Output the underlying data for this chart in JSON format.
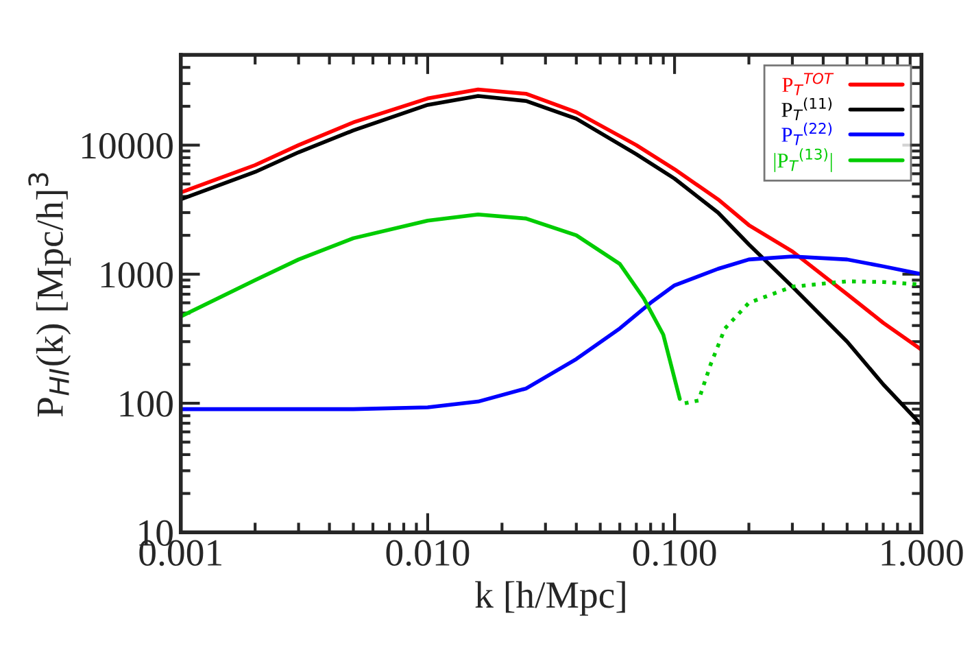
{
  "chart_data": {
    "type": "line",
    "xlabel": "k [h/Mpc]",
    "ylabel": "P$_{HI}$(k) [Mpc/h]$^{3}$",
    "log": "xy",
    "grid": false,
    "legend": "top right",
    "line_style": "solid",
    "xlim": [
      0.001,
      1.0
    ],
    "ylim": [
      10,
      50000
    ],
    "xticks": [
      {
        "value": 0.001,
        "label": "0.001"
      },
      {
        "value": 0.01,
        "label": "0.010"
      },
      {
        "value": 0.1,
        "label": "0.100"
      },
      {
        "value": 1.0,
        "label": "1.000"
      }
    ],
    "yticks": [
      10,
      100,
      1000,
      10000
    ],
    "series": [
      {
        "name": "P$_{T}$$^{TOT}$",
        "color": "#ff0000",
        "x": [
          0.001,
          0.002,
          0.003,
          0.005,
          0.01,
          0.016,
          0.025,
          0.04,
          0.07,
          0.1,
          0.15,
          0.2,
          0.3,
          0.5,
          0.7,
          1.0
        ],
        "values": [
          4300,
          7000,
          10000,
          15000,
          23000,
          27000,
          25000,
          18000,
          10000,
          6500,
          3800,
          2400,
          1500,
          700,
          420,
          260
        ]
      },
      {
        "name": "P$_{T}$$^{(11)}$",
        "color": "#000000",
        "x": [
          0.001,
          0.002,
          0.003,
          0.005,
          0.01,
          0.016,
          0.025,
          0.04,
          0.07,
          0.1,
          0.15,
          0.2,
          0.3,
          0.5,
          0.7,
          1.0
        ],
        "values": [
          3800,
          6200,
          8800,
          13000,
          20500,
          24000,
          22000,
          16000,
          8500,
          5500,
          3000,
          1700,
          800,
          300,
          140,
          68
        ]
      },
      {
        "name": "P$_{T}$$^{(22)}$",
        "color": "#0000ff",
        "x": [
          0.001,
          0.005,
          0.01,
          0.016,
          0.025,
          0.04,
          0.06,
          0.08,
          0.1,
          0.15,
          0.2,
          0.3,
          0.5,
          0.7,
          1.0
        ],
        "values": [
          90,
          90,
          93,
          103,
          130,
          220,
          380,
          600,
          820,
          1100,
          1300,
          1370,
          1300,
          1150,
          1000
        ]
      },
      {
        "name": "|P$_{T}$$^{(13)}$|",
        "color": "#00cc00",
        "x": [
          0.001,
          0.002,
          0.003,
          0.005,
          0.01,
          0.016,
          0.025,
          0.04,
          0.06,
          0.075,
          0.09,
          0.105
        ],
        "values": [
          470,
          900,
          1300,
          1900,
          2600,
          2900,
          2700,
          2000,
          1200,
          650,
          340,
          108
        ]
      },
      {
        "color": "#00cc00",
        "line_style": "dotted",
        "x": [
          0.11,
          0.125,
          0.14,
          0.16,
          0.2,
          0.3,
          0.5,
          0.7,
          1.0
        ],
        "values": [
          100,
          105,
          200,
          380,
          600,
          800,
          880,
          870,
          830
        ]
      }
    ]
  }
}
